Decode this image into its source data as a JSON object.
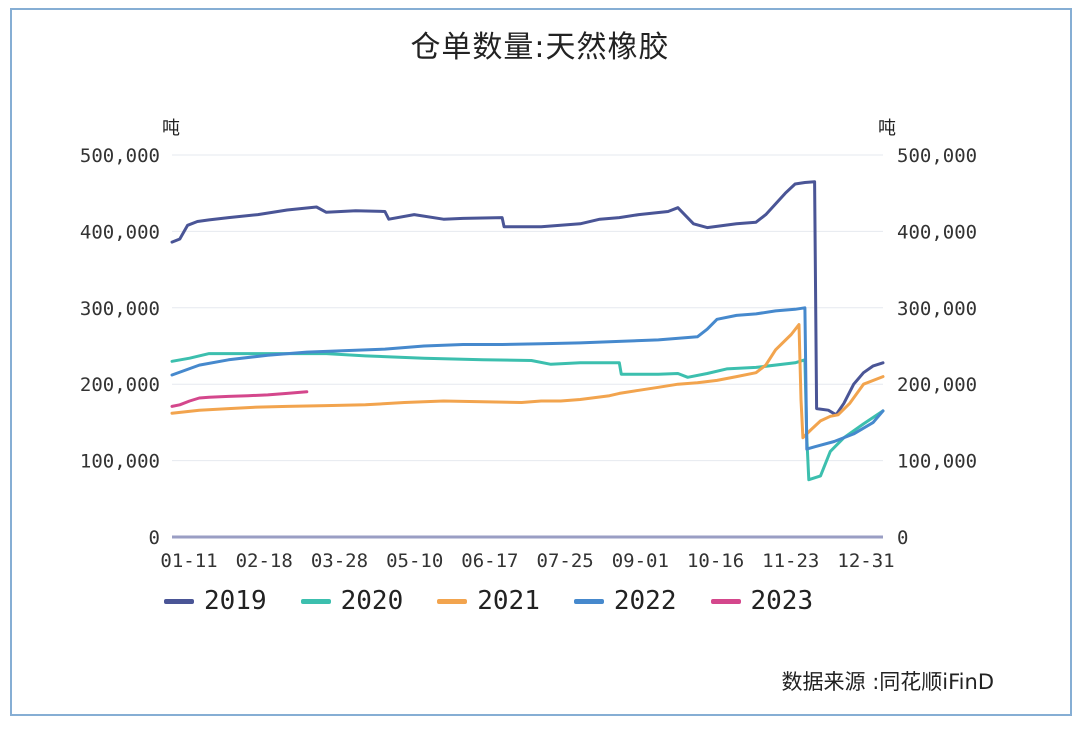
{
  "chart_data": {
    "type": "line",
    "title": "仓单数量:天然橡胶",
    "unit_left": "吨",
    "unit_right": "吨",
    "ylim": [
      0,
      500000
    ],
    "y_ticks": [
      "0",
      "100,000",
      "200,000",
      "300,000",
      "400,000",
      "500,000"
    ],
    "x_ticks": [
      "01-11",
      "02-18",
      "03-28",
      "05-10",
      "06-17",
      "07-25",
      "09-01",
      "10-16",
      "11-23",
      "12-31"
    ],
    "x_range": [
      1,
      365
    ],
    "legend_position": "bottom",
    "grid": true,
    "source": "数据来源 :同花顺iFinD",
    "series": [
      {
        "name": "2019",
        "color": "#4a5596",
        "x": [
          1,
          5,
          9,
          14,
          20,
          30,
          45,
          60,
          75,
          80,
          95,
          110,
          112,
          125,
          140,
          150,
          170,
          171,
          190,
          200,
          210,
          220,
          230,
          240,
          255,
          260,
          268,
          275,
          290,
          300,
          305,
          310,
          315,
          320,
          325,
          330,
          331,
          337,
          341,
          345,
          350,
          355,
          360,
          365
        ],
        "y": [
          386000,
          390000,
          408000,
          413000,
          415000,
          418000,
          422000,
          428000,
          432000,
          425000,
          427000,
          426000,
          416000,
          422000,
          416000,
          417000,
          418000,
          406000,
          406000,
          408000,
          410000,
          416000,
          418000,
          422000,
          426000,
          431000,
          410000,
          405000,
          410000,
          412000,
          422000,
          436000,
          450000,
          462000,
          464000,
          465000,
          168000,
          166000,
          160000,
          175000,
          200000,
          215000,
          224000,
          228000
        ]
      },
      {
        "name": "2020",
        "color": "#3cbfae",
        "x": [
          1,
          10,
          20,
          40,
          60,
          80,
          100,
          130,
          160,
          185,
          195,
          210,
          230,
          231,
          250,
          260,
          265,
          275,
          285,
          300,
          320,
          325,
          326,
          327,
          333,
          338,
          345,
          355,
          365
        ],
        "y": [
          230000,
          234000,
          240000,
          240000,
          240000,
          240000,
          237000,
          234000,
          232000,
          231000,
          226000,
          228000,
          228000,
          213000,
          213000,
          214000,
          209000,
          214000,
          220000,
          222000,
          228000,
          232000,
          130000,
          75000,
          80000,
          112000,
          130000,
          148000,
          165000
        ]
      },
      {
        "name": "2021",
        "color": "#f2a44e",
        "x": [
          1,
          15,
          30,
          45,
          60,
          80,
          100,
          120,
          140,
          160,
          180,
          190,
          200,
          210,
          225,
          230,
          240,
          250,
          260,
          270,
          280,
          290,
          300,
          305,
          310,
          318,
          322,
          323,
          324,
          328,
          333,
          338,
          342,
          348,
          355,
          365
        ],
        "y": [
          162000,
          166000,
          168000,
          170000,
          171000,
          172000,
          173000,
          176000,
          178000,
          177000,
          176000,
          178000,
          178000,
          180000,
          185000,
          188000,
          192000,
          196000,
          200000,
          202000,
          205000,
          210000,
          215000,
          225000,
          245000,
          265000,
          278000,
          180000,
          130000,
          140000,
          152000,
          158000,
          160000,
          175000,
          200000,
          210000
        ]
      },
      {
        "name": "2022",
        "color": "#4689cd",
        "x": [
          1,
          15,
          30,
          50,
          70,
          90,
          110,
          130,
          150,
          170,
          190,
          210,
          230,
          250,
          270,
          275,
          280,
          290,
          300,
          310,
          320,
          325,
          326,
          330,
          340,
          350,
          360,
          365
        ],
        "y": [
          212000,
          225000,
          232000,
          238000,
          242000,
          244000,
          246000,
          250000,
          252000,
          252000,
          253000,
          254000,
          256000,
          258000,
          262000,
          272000,
          285000,
          290000,
          292000,
          296000,
          298000,
          300000,
          115000,
          118000,
          125000,
          135000,
          150000,
          165000
        ]
      },
      {
        "name": "2023",
        "color": "#d4478c",
        "x": [
          1,
          5,
          10,
          15,
          20,
          30,
          40,
          50,
          60,
          70
        ],
        "y": [
          171000,
          173000,
          178000,
          182000,
          183000,
          184000,
          185000,
          186000,
          188000,
          190000
        ]
      }
    ]
  }
}
